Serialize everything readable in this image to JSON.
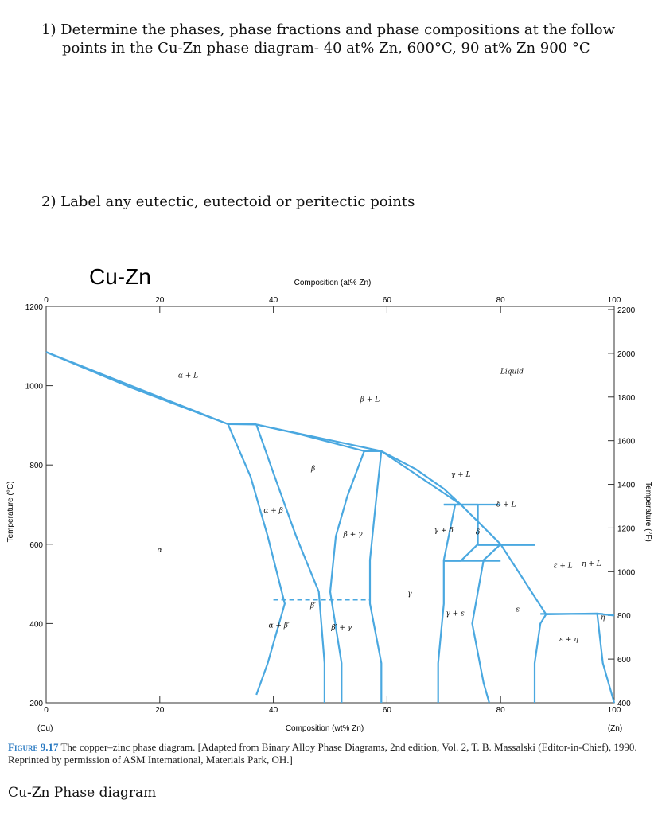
{
  "questions": {
    "q1_line1": "1) Determine the phases, phase fractions and phase compositions at the follow",
    "q1_line2": "points in the Cu-Zn phase diagram- 40 at% Zn, 600°C, 90 at% Zn 900 °C",
    "q2": "2) Label any eutectic, eutectoid or peritectic points"
  },
  "caption": {
    "figure_label": "Figure 9.17",
    "text": "The copper–zinc phase diagram. [Adapted from Binary Alloy Phase Diagrams, 2nd edition, Vol. 2, T. B. Massalski (Editor-in-Chief), 1990. Reprinted by permission of ASM International, Materials Park, OH.]"
  },
  "footer": "Cu-Zn Phase diagram",
  "colors": {
    "line": "#4aa8e0",
    "text": "#111111",
    "caption_accent": "#2a7ac2"
  },
  "chart_data": {
    "type": "line",
    "title": "Cu-Zn",
    "top_axis_title": "Composition (at% Zn)",
    "top_ticks": [
      "0",
      "20",
      "40",
      "60",
      "80",
      "100"
    ],
    "bottom_axis_title": "Composition (wt% Zn)",
    "bottom_ticks": [
      "0",
      "20",
      "40",
      "60",
      "80",
      "100"
    ],
    "bottom_end_labels": [
      "(Cu)",
      "(Zn)"
    ],
    "left_axis_title": "Temperature (°C)",
    "left_ticks": [
      "1200",
      "1000",
      "800",
      "600",
      "400",
      "200"
    ],
    "right_axis_title": "Temperature (°F)",
    "right_ticks": [
      "2200",
      "2000",
      "1800",
      "1600",
      "1400",
      "1200",
      "1000",
      "800",
      "600",
      "400"
    ],
    "xlim": [
      0,
      100
    ],
    "ylim": [
      200,
      1200
    ],
    "grid": false,
    "phase_labels": [
      "α + L",
      "Liquid",
      "β + L",
      "γ + L",
      "δ + L",
      "ε + L",
      "η + L",
      "α + β",
      "β",
      "β + γ",
      "α",
      "γ",
      "β′",
      "α + β′",
      "β′ + γ",
      "γ + δ",
      "δ",
      "γ + ε",
      "ε",
      "ε + η",
      "η"
    ],
    "boundaries": [
      {
        "name": "liquidus",
        "points": [
          [
            0,
            1085
          ],
          [
            32,
            903
          ],
          [
            37,
            902
          ],
          [
            59,
            835
          ],
          [
            73,
            700
          ],
          [
            80,
            600
          ],
          [
            88,
            423
          ],
          [
            97,
            425
          ],
          [
            100,
            420
          ]
        ]
      },
      {
        "name": "solidus-alpha",
        "points": [
          [
            0,
            1085
          ],
          [
            15,
            995
          ],
          [
            32,
            903
          ]
        ]
      },
      {
        "name": "beta-liquid",
        "points": [
          [
            37,
            902
          ],
          [
            44,
            880
          ],
          [
            56,
            835
          ],
          [
            59,
            835
          ]
        ]
      },
      {
        "name": "gamma-liquid-upper",
        "points": [
          [
            59,
            835
          ],
          [
            65,
            790
          ],
          [
            70,
            740
          ],
          [
            73,
            700
          ]
        ]
      },
      {
        "name": "alpha-solvus",
        "points": [
          [
            32,
            903
          ],
          [
            36,
            770
          ],
          [
            39,
            620
          ],
          [
            42,
            450
          ],
          [
            39,
            300
          ],
          [
            37,
            220
          ]
        ]
      },
      {
        "name": "beta-left",
        "points": [
          [
            37,
            902
          ],
          [
            40,
            780
          ],
          [
            44,
            620
          ],
          [
            48,
            480
          ],
          [
            49,
            300
          ],
          [
            49,
            200
          ]
        ]
      },
      {
        "name": "beta-right",
        "points": [
          [
            56,
            835
          ],
          [
            53,
            720
          ],
          [
            51,
            620
          ],
          [
            50,
            480
          ],
          [
            52,
            300
          ],
          [
            52,
            200
          ]
        ]
      },
      {
        "name": "gamma-left",
        "points": [
          [
            59,
            835
          ],
          [
            58,
            700
          ],
          [
            57,
            560
          ],
          [
            57,
            450
          ],
          [
            59,
            300
          ],
          [
            59,
            200
          ]
        ]
      },
      {
        "name": "gamma-right",
        "points": [
          [
            72,
            700
          ],
          [
            70,
            560
          ],
          [
            70,
            450
          ],
          [
            69,
            300
          ],
          [
            69,
            200
          ]
        ]
      },
      {
        "name": "delta-region",
        "points": [
          [
            70,
            700
          ],
          [
            76,
            700
          ],
          [
            76,
            600
          ],
          [
            73,
            558
          ],
          [
            70,
            558
          ]
        ]
      },
      {
        "name": "epsilon-left",
        "points": [
          [
            80,
            600
          ],
          [
            77,
            560
          ],
          [
            75,
            400
          ],
          [
            77,
            250
          ],
          [
            78,
            200
          ]
        ]
      },
      {
        "name": "epsilon-right",
        "points": [
          [
            88,
            423
          ],
          [
            87,
            400
          ],
          [
            86,
            300
          ],
          [
            86,
            200
          ]
        ]
      },
      {
        "name": "eta-solvus",
        "points": [
          [
            97,
            425
          ],
          [
            98,
            300
          ],
          [
            100,
            200
          ]
        ]
      },
      {
        "name": "peritectic-903",
        "points": [
          [
            32,
            903
          ],
          [
            37,
            903
          ]
        ]
      },
      {
        "name": "peritectic-835",
        "points": [
          [
            56,
            835
          ],
          [
            59,
            835
          ]
        ]
      },
      {
        "name": "peritectic-700",
        "points": [
          [
            70,
            700
          ],
          [
            80,
            700
          ]
        ]
      },
      {
        "name": "peritectic-598",
        "points": [
          [
            76,
            598
          ],
          [
            86,
            598
          ]
        ]
      },
      {
        "name": "eutectoid-558",
        "points": [
          [
            70,
            558
          ],
          [
            80,
            558
          ]
        ]
      },
      {
        "name": "peritectic-423",
        "points": [
          [
            87,
            424
          ],
          [
            98,
            424
          ]
        ]
      }
    ]
  }
}
